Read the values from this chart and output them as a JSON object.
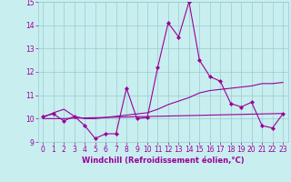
{
  "x": [
    0,
    1,
    2,
    3,
    4,
    5,
    6,
    7,
    8,
    9,
    10,
    11,
    12,
    13,
    14,
    15,
    16,
    17,
    18,
    19,
    20,
    21,
    22,
    23
  ],
  "line_main": [
    10.1,
    10.2,
    9.9,
    10.1,
    9.7,
    9.15,
    9.35,
    9.35,
    11.3,
    10.0,
    10.05,
    12.2,
    14.1,
    13.5,
    15.0,
    12.5,
    11.8,
    11.6,
    10.65,
    10.5,
    10.7,
    9.7,
    9.6,
    10.2
  ],
  "line_upper": [
    10.05,
    10.25,
    10.4,
    10.1,
    10.0,
    10.0,
    10.05,
    10.1,
    10.15,
    10.2,
    10.25,
    10.4,
    10.6,
    10.75,
    10.9,
    11.1,
    11.2,
    11.25,
    11.3,
    11.35,
    11.4,
    11.5,
    11.5,
    11.55
  ],
  "trend_flat": [
    10.0,
    10.0,
    10.0,
    10.02,
    10.03,
    10.04,
    10.05,
    10.06,
    10.07,
    10.08,
    10.09,
    10.1,
    10.11,
    10.12,
    10.13,
    10.14,
    10.15,
    10.16,
    10.17,
    10.18,
    10.19,
    10.2,
    10.21,
    10.22
  ],
  "color": "#990099",
  "bg_color": "#c8eef0",
  "grid_color": "#99cccc",
  "xlabel": "Windchill (Refroidissement éolien,°C)",
  "ylim": [
    9.0,
    15.0
  ],
  "xlim": [
    -0.5,
    23.5
  ],
  "yticks": [
    9,
    10,
    11,
    12,
    13,
    14,
    15
  ],
  "xticks": [
    0,
    1,
    2,
    3,
    4,
    5,
    6,
    7,
    8,
    9,
    10,
    11,
    12,
    13,
    14,
    15,
    16,
    17,
    18,
    19,
    20,
    21,
    22,
    23
  ],
  "xlabel_fontsize": 6.0,
  "tick_fontsize": 5.5
}
